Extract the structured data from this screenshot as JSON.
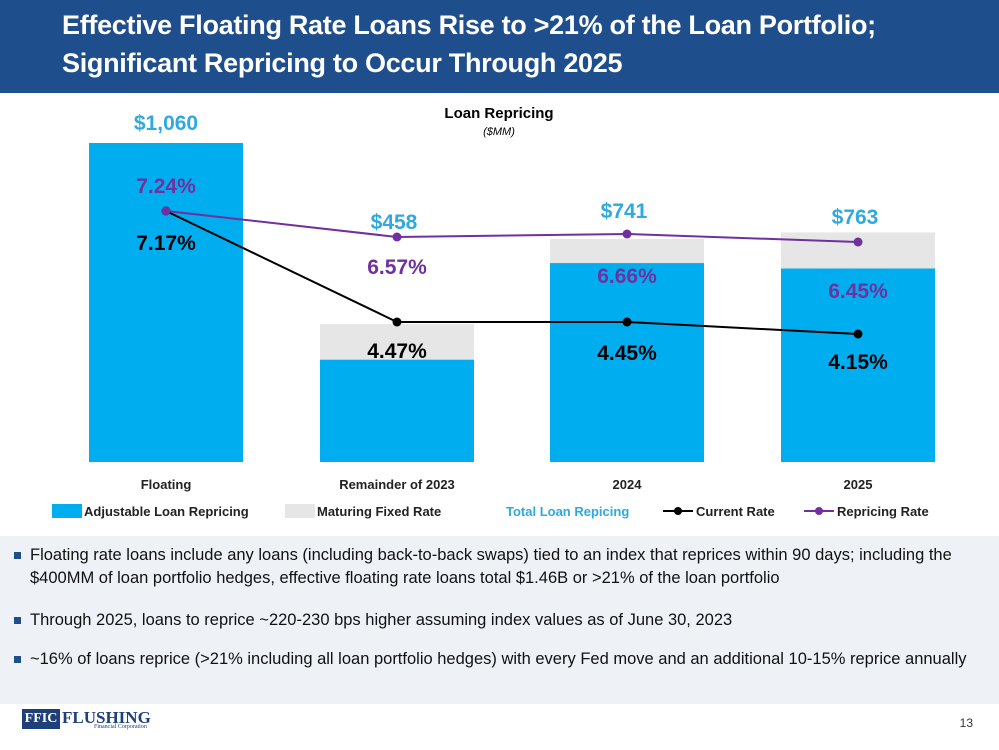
{
  "header": {
    "title_line1": "Effective Floating Rate Loans Rise to >21% of the Loan Portfolio;",
    "title_line2": "Significant Repricing to Occur Through 2025"
  },
  "colors": {
    "title_bg": "#1f4e8c",
    "adjustable": "#00aeef",
    "maturing": "#e6e6e6",
    "total_label": "#2fa9e0",
    "current_rate": "#000000",
    "repricing_rate": "#7030a0"
  },
  "chart_data": {
    "type": "bar",
    "title": "Loan Repricing",
    "subtitle": "($MM)",
    "categories": [
      "Floating",
      "Remainder of 2023",
      "2024",
      "2025"
    ],
    "series": [
      {
        "name": "Adjustable Loan Repricing",
        "kind": "bar",
        "values": [
          1060,
          340,
          661,
          643
        ]
      },
      {
        "name": "Maturing Fixed Rate",
        "kind": "bar",
        "values": [
          0,
          118,
          80,
          120
        ]
      },
      {
        "name": "Current Rate",
        "kind": "line",
        "values": [
          7.17,
          4.47,
          4.45,
          4.15
        ]
      },
      {
        "name": "Repricing Rate",
        "kind": "line",
        "values": [
          7.24,
          6.57,
          6.66,
          6.45
        ]
      }
    ],
    "totals": [
      1060,
      458,
      741,
      763
    ],
    "total_labels": [
      "$1,060",
      "$458",
      "$741",
      "$763"
    ],
    "current_rate_labels": [
      "7.17%",
      "4.47%",
      "4.45%",
      "4.15%"
    ],
    "repricing_rate_labels": [
      "7.24%",
      "6.57%",
      "6.66%",
      "6.45%"
    ],
    "legend": [
      "Adjustable Loan Repricing",
      "Maturing Fixed Rate",
      "Total Loan Repicing",
      "Current Rate",
      "Repricing Rate"
    ],
    "legend_position": "bottom",
    "ylim": [
      0,
      1060
    ],
    "rate_ylim": [
      0,
      7.24
    ]
  },
  "bullets": [
    "Floating rate loans include any loans (including back-to-back swaps) tied to an index that reprices within 90 days; including the $400MM of loan portfolio hedges, effective floating rate loans total $1.46B or >21% of the loan portfolio",
    "Through 2025, loans to reprice ~220-230 bps higher assuming index values as of June 30, 2023",
    "~16% of loans reprice (>21% including all loan portfolio hedges) with every Fed move and an additional 10-15% reprice annually"
  ],
  "footer": {
    "logo_box": "FFIC",
    "logo_word": "FLUSHING",
    "logo_sub": "Financial Corporation",
    "page_number": "13"
  }
}
